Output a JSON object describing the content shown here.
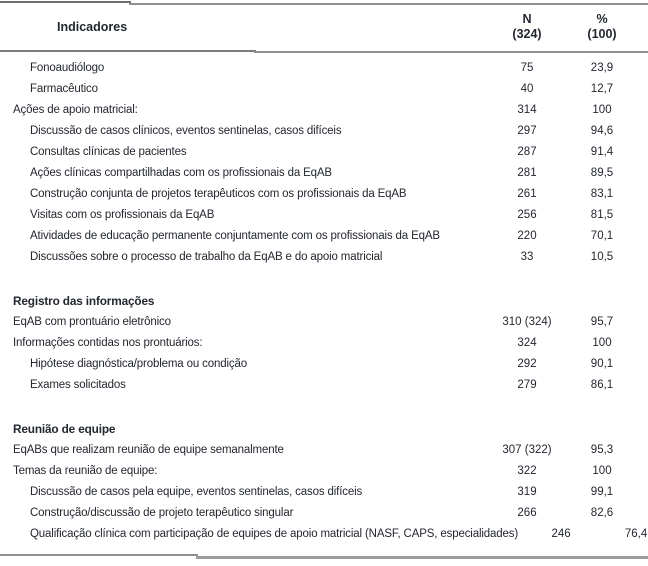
{
  "colors": {
    "text": "#23272f",
    "rule": "#8f8f8f",
    "rule_dark": "#6f6f6f",
    "background": "#ffffff"
  },
  "table": {
    "columns": [
      {
        "label": "Indicadores"
      },
      {
        "line1": "N",
        "line2": "(324)"
      },
      {
        "line1": "%",
        "line2": "(100)"
      }
    ],
    "rows": [
      {
        "type": "item",
        "indent": 1,
        "label": "Fonoaudiólogo",
        "n": "75",
        "pct": "23,9"
      },
      {
        "type": "item",
        "indent": 1,
        "label": "Farmacêutico",
        "n": "40",
        "pct": "12,7"
      },
      {
        "type": "item",
        "indent": 0,
        "label": "Ações de apoio matricial:",
        "n": "314",
        "pct": "100"
      },
      {
        "type": "item",
        "indent": 1,
        "label": "Discussão de casos clínicos, eventos sentinelas, casos difíceis",
        "n": "297",
        "pct": "94,6"
      },
      {
        "type": "item",
        "indent": 1,
        "label": "Consultas clínicas de pacientes",
        "n": "287",
        "pct": "91,4"
      },
      {
        "type": "item",
        "indent": 1,
        "label": "Ações clínicas compartilhadas com os profissionais da EqAB",
        "n": "281",
        "pct": "89,5"
      },
      {
        "type": "item",
        "indent": 1,
        "label": "Construção conjunta de projetos terapêuticos com os profissionais da EqAB",
        "n": "261",
        "pct": "83,1"
      },
      {
        "type": "item",
        "indent": 1,
        "label": "Visitas com os profissionais da EqAB",
        "n": "256",
        "pct": "81,5"
      },
      {
        "type": "item",
        "indent": 1,
        "label": "Atividades de educação permanente conjuntamente com os profissionais da EqAB",
        "n": "220",
        "pct": "70,1"
      },
      {
        "type": "item",
        "indent": 1,
        "label": "Discussões sobre o processo de trabalho da EqAB e do apoio matricial",
        "n": "33",
        "pct": "10,5"
      },
      {
        "type": "spacer"
      },
      {
        "type": "section",
        "indent": 0,
        "label": "Registro das informações",
        "n": "",
        "pct": ""
      },
      {
        "type": "item",
        "indent": 0,
        "label": "EqAB com prontuário eletrônico",
        "n": "310 (324)",
        "pct": "95,7"
      },
      {
        "type": "item",
        "indent": 0,
        "label": "Informações contidas nos prontuários:",
        "n": "324",
        "pct": "100"
      },
      {
        "type": "item",
        "indent": 1,
        "label": "Hipótese diagnóstica/problema ou condição",
        "n": "292",
        "pct": "90,1"
      },
      {
        "type": "item",
        "indent": 1,
        "label": "Exames solicitados",
        "n": "279",
        "pct": "86,1"
      },
      {
        "type": "spacer"
      },
      {
        "type": "section",
        "indent": 0,
        "label": "Reunião de equipe",
        "n": "",
        "pct": ""
      },
      {
        "type": "item",
        "indent": 0,
        "label": "EqABs que realizam reunião de equipe semanalmente",
        "n": "307 (322)",
        "pct": "95,3"
      },
      {
        "type": "item",
        "indent": 0,
        "label": "Temas da reunião de equipe:",
        "n": "322",
        "pct": "100"
      },
      {
        "type": "item",
        "indent": 1,
        "label": "Discussão de casos pela equipe, eventos sentinelas, casos difíceis",
        "n": "319",
        "pct": "99,1"
      },
      {
        "type": "item",
        "indent": 1,
        "label": "Construção/discussão de projeto terapêutico singular",
        "n": "266",
        "pct": "82,6"
      },
      {
        "type": "item",
        "indent": 1,
        "label": "Qualificação clínica com participação de equipes de apoio matricial (NASF, CAPS, especialidades)",
        "n": "246",
        "pct": "76,4"
      }
    ]
  }
}
